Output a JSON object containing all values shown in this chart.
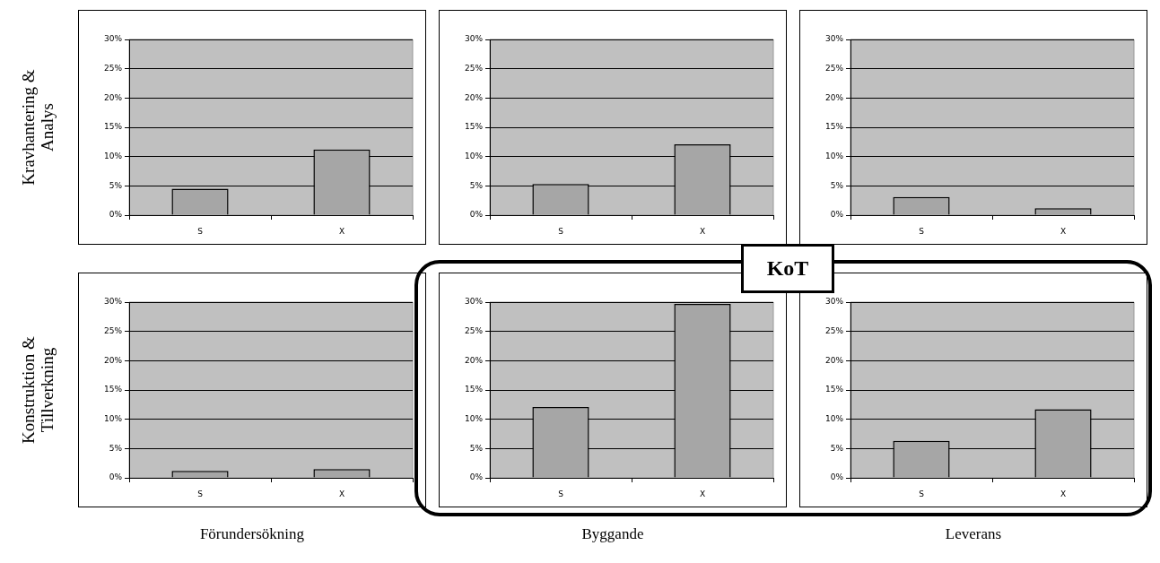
{
  "chart_data": [
    {
      "type": "bar",
      "categories": [
        "S",
        "X"
      ],
      "values": [
        4.5,
        11.2
      ],
      "color": "#a6a6a6",
      "ylim": [
        0,
        30
      ],
      "yticks": [
        {
          "value": 0,
          "label": "0%"
        },
        {
          "value": 5,
          "label": "5%"
        },
        {
          "value": 10,
          "label": "10%"
        },
        {
          "value": 15,
          "label": "15%"
        },
        {
          "value": 20,
          "label": "20%"
        },
        {
          "value": 25,
          "label": "25%"
        },
        {
          "value": 30,
          "label": "30%"
        }
      ],
      "grid": "y",
      "ylabel": "Kravhantering & Analys"
    },
    {
      "type": "bar",
      "categories": [
        "S",
        "X"
      ],
      "values": [
        5.3,
        12.1
      ],
      "color": "#a6a6a6",
      "ylim": [
        0,
        30
      ],
      "yticks": [
        {
          "value": 0,
          "label": "0%"
        },
        {
          "value": 5,
          "label": "5%"
        },
        {
          "value": 10,
          "label": "10%"
        },
        {
          "value": 15,
          "label": "15%"
        },
        {
          "value": 20,
          "label": "20%"
        },
        {
          "value": 25,
          "label": "25%"
        },
        {
          "value": 30,
          "label": "30%"
        }
      ],
      "grid": "y"
    },
    {
      "type": "bar",
      "categories": [
        "S",
        "X"
      ],
      "values": [
        3.1,
        1.2
      ],
      "color": "#a6a6a6",
      "ylim": [
        0,
        30
      ],
      "yticks": [
        {
          "value": 0,
          "label": "0%"
        },
        {
          "value": 5,
          "label": "5%"
        },
        {
          "value": 10,
          "label": "10%"
        },
        {
          "value": 15,
          "label": "15%"
        },
        {
          "value": 20,
          "label": "20%"
        },
        {
          "value": 25,
          "label": "25%"
        },
        {
          "value": 30,
          "label": "30%"
        }
      ],
      "grid": "y"
    },
    {
      "type": "bar",
      "categories": [
        "S",
        "X"
      ],
      "values": [
        1.2,
        1.5
      ],
      "color": "#a6a6a6",
      "ylim": [
        0,
        30
      ],
      "yticks": [
        {
          "value": 0,
          "label": "0%"
        },
        {
          "value": 5,
          "label": "5%"
        },
        {
          "value": 10,
          "label": "10%"
        },
        {
          "value": 15,
          "label": "15%"
        },
        {
          "value": 20,
          "label": "20%"
        },
        {
          "value": 25,
          "label": "25%"
        },
        {
          "value": 30,
          "label": "30%"
        }
      ],
      "grid": "y",
      "ylabel": "Konstruktion & Tillverkning",
      "xlabel": "Förundersökning"
    },
    {
      "type": "bar",
      "categories": [
        "S",
        "X"
      ],
      "values": [
        12.1,
        29.7
      ],
      "color": "#a6a6a6",
      "ylim": [
        0,
        30
      ],
      "yticks": [
        {
          "value": 0,
          "label": "0%"
        },
        {
          "value": 5,
          "label": "5%"
        },
        {
          "value": 10,
          "label": "10%"
        },
        {
          "value": 15,
          "label": "15%"
        },
        {
          "value": 20,
          "label": "20%"
        },
        {
          "value": 25,
          "label": "25%"
        },
        {
          "value": 30,
          "label": "30%"
        }
      ],
      "grid": "y",
      "xlabel": "Byggande",
      "annotations": [
        "KoT"
      ]
    },
    {
      "type": "bar",
      "categories": [
        "S",
        "X"
      ],
      "values": [
        6.3,
        11.7
      ],
      "color": "#a6a6a6",
      "ylim": [
        0,
        30
      ],
      "yticks": [
        {
          "value": 0,
          "label": "0%"
        },
        {
          "value": 5,
          "label": "5%"
        },
        {
          "value": 10,
          "label": "10%"
        },
        {
          "value": 15,
          "label": "15%"
        },
        {
          "value": 20,
          "label": "20%"
        },
        {
          "value": 25,
          "label": "25%"
        },
        {
          "value": 30,
          "label": "30%"
        }
      ],
      "grid": "y",
      "xlabel": "Leverans"
    }
  ]
}
